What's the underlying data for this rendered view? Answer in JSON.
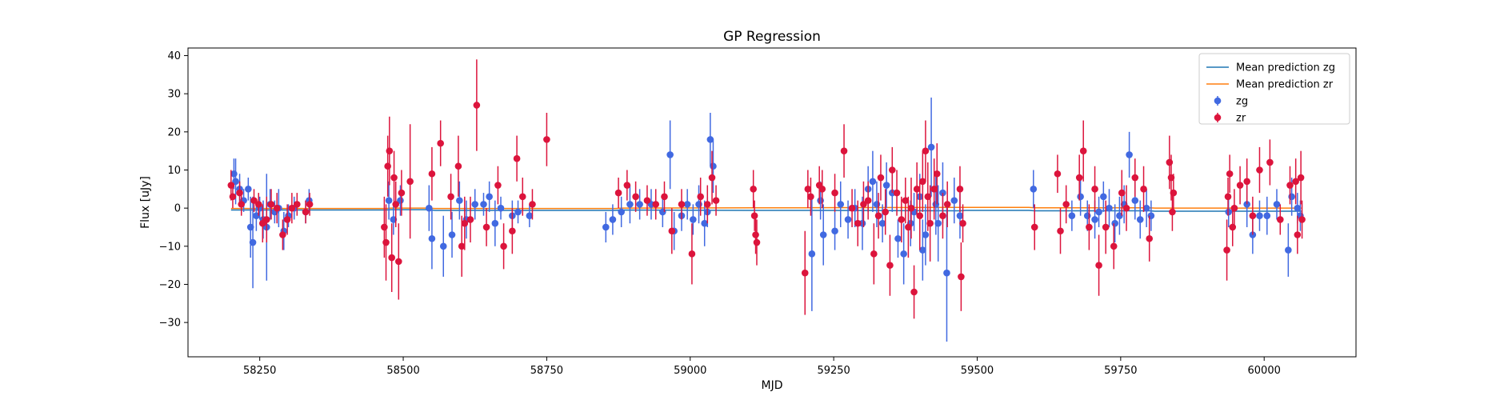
{
  "chart_data": {
    "type": "scatter",
    "title": "GP Regression",
    "xlabel": "MJD",
    "ylabel": "Flux [uJy]",
    "xlim": [
      58125,
      60160
    ],
    "ylim": [
      -39,
      42
    ],
    "xticks": [
      58250,
      58500,
      58750,
      59000,
      59250,
      59500,
      59750,
      60000
    ],
    "yticks": [
      -30,
      -20,
      -10,
      0,
      10,
      20,
      30,
      40
    ],
    "legend_position": "top-right",
    "lines": [
      {
        "name": "Mean prediction zg",
        "color": "#1f77b4",
        "x": [
          58200,
          58470,
          58480,
          58545,
          58555,
          58870,
          58880,
          59110,
          59200,
          59470,
          59480,
          59590,
          59600,
          59800,
          59810,
          60065
        ],
        "y": [
          -0.5,
          -0.5,
          -0.4,
          -0.4,
          -0.6,
          -0.6,
          -0.5,
          -0.6,
          -0.6,
          -0.7,
          -0.6,
          -0.6,
          -0.7,
          -0.7,
          -0.8,
          -0.8
        ]
      },
      {
        "name": "Mean prediction zr",
        "color": "#ff7f0e",
        "x": [
          58200,
          58470,
          58480,
          58545,
          58555,
          58870,
          58880,
          59110,
          59200,
          59470,
          59480,
          59590,
          59600,
          59800,
          59810,
          60065
        ],
        "y": [
          -0.1,
          -0.1,
          0.0,
          0.0,
          -0.1,
          -0.1,
          0.0,
          0.1,
          0.1,
          0.2,
          0.2,
          0.2,
          0.1,
          0.1,
          0.0,
          0.0
        ]
      }
    ],
    "series": [
      {
        "name": "zg",
        "color": "#4169e1",
        "points": [
          [
            58205,
            9,
            4
          ],
          [
            58208,
            7,
            6
          ],
          [
            58215,
            5,
            4
          ],
          [
            58222,
            2,
            3
          ],
          [
            58230,
            5,
            3
          ],
          [
            58234,
            -5,
            8
          ],
          [
            58238,
            -9,
            12
          ],
          [
            58244,
            -2,
            4
          ],
          [
            58250,
            0,
            3
          ],
          [
            58256,
            -3,
            5
          ],
          [
            58262,
            -5,
            14
          ],
          [
            58268,
            1,
            4
          ],
          [
            58276,
            -1,
            3
          ],
          [
            58283,
            0,
            5
          ],
          [
            58292,
            -6,
            5
          ],
          [
            58300,
            -2,
            3
          ],
          [
            58310,
            0,
            3
          ],
          [
            58330,
            -1,
            3
          ],
          [
            58336,
            2,
            3
          ],
          [
            58475,
            2,
            5
          ],
          [
            58483,
            -3,
            4
          ],
          [
            58495,
            2,
            4
          ],
          [
            58545,
            0,
            6
          ],
          [
            58550,
            -8,
            8
          ],
          [
            58570,
            -10,
            8
          ],
          [
            58585,
            -7,
            6
          ],
          [
            58598,
            2,
            5
          ],
          [
            58610,
            -3,
            5
          ],
          [
            58625,
            1,
            4
          ],
          [
            58640,
            1,
            3
          ],
          [
            58650,
            3,
            4
          ],
          [
            58660,
            -4,
            6
          ],
          [
            58670,
            0,
            3
          ],
          [
            58690,
            -2,
            4
          ],
          [
            58700,
            -1,
            3
          ],
          [
            58720,
            -2,
            3
          ],
          [
            58853,
            -5,
            4
          ],
          [
            58865,
            -3,
            4
          ],
          [
            58880,
            -1,
            4
          ],
          [
            58895,
            1,
            5
          ],
          [
            58912,
            1,
            4
          ],
          [
            58932,
            1,
            4
          ],
          [
            58952,
            -1,
            4
          ],
          [
            58965,
            14,
            9
          ],
          [
            58972,
            -6,
            5
          ],
          [
            58985,
            -2,
            4
          ],
          [
            58995,
            1,
            4
          ],
          [
            59005,
            -3,
            4
          ],
          [
            59015,
            1,
            5
          ],
          [
            59025,
            -4,
            6
          ],
          [
            59030,
            -1,
            4
          ],
          [
            59035,
            18,
            7
          ],
          [
            59040,
            11,
            7
          ],
          [
            59212,
            -12,
            15
          ],
          [
            59227,
            2,
            5
          ],
          [
            59232,
            -7,
            8
          ],
          [
            59252,
            -6,
            5
          ],
          [
            59262,
            1,
            6
          ],
          [
            59275,
            -3,
            5
          ],
          [
            59287,
            0,
            5
          ],
          [
            59300,
            -4,
            7
          ],
          [
            59310,
            5,
            6
          ],
          [
            59318,
            7,
            8
          ],
          [
            59325,
            1,
            6
          ],
          [
            59335,
            -4,
            5
          ],
          [
            59342,
            6,
            6
          ],
          [
            59352,
            4,
            5
          ],
          [
            59362,
            -8,
            5
          ],
          [
            59372,
            -12,
            8
          ],
          [
            59384,
            -4,
            6
          ],
          [
            59390,
            -1,
            5
          ],
          [
            59400,
            3,
            6
          ],
          [
            59405,
            -11,
            8
          ],
          [
            59410,
            -7,
            8
          ],
          [
            59420,
            16,
            13
          ],
          [
            59428,
            1,
            8
          ],
          [
            59432,
            -4,
            10
          ],
          [
            59440,
            4,
            8
          ],
          [
            59447,
            -17,
            18
          ],
          [
            59460,
            2,
            6
          ],
          [
            59470,
            -2,
            6
          ],
          [
            59598,
            5,
            5
          ],
          [
            59665,
            -2,
            4
          ],
          [
            59680,
            3,
            5
          ],
          [
            59692,
            -2,
            4
          ],
          [
            59705,
            -3,
            5
          ],
          [
            59712,
            -1,
            4
          ],
          [
            59720,
            3,
            4
          ],
          [
            59730,
            0,
            5
          ],
          [
            59740,
            -4,
            5
          ],
          [
            59748,
            -2,
            5
          ],
          [
            59756,
            1,
            5
          ],
          [
            59765,
            14,
            6
          ],
          [
            59775,
            2,
            5
          ],
          [
            59784,
            -3,
            5
          ],
          [
            59795,
            0,
            5
          ],
          [
            59803,
            -2,
            4
          ],
          [
            59938,
            -1,
            4
          ],
          [
            59970,
            1,
            6
          ],
          [
            59980,
            -7,
            5
          ],
          [
            59992,
            -2,
            4
          ],
          [
            60005,
            -2,
            5
          ],
          [
            60022,
            1,
            4
          ],
          [
            60042,
            -11,
            7
          ],
          [
            60048,
            3,
            5
          ],
          [
            60058,
            0,
            4
          ],
          [
            60063,
            -2,
            4
          ]
        ]
      },
      {
        "name": "zr",
        "color": "#dc143c",
        "points": [
          [
            58200,
            6,
            4
          ],
          [
            58203,
            3,
            3
          ],
          [
            58215,
            4,
            3
          ],
          [
            58218,
            1,
            3
          ],
          [
            58240,
            2,
            3
          ],
          [
            58248,
            1,
            3
          ],
          [
            58255,
            -4,
            5
          ],
          [
            58262,
            -3,
            6
          ],
          [
            58270,
            1,
            4
          ],
          [
            58280,
            0,
            4
          ],
          [
            58290,
            -7,
            4
          ],
          [
            58298,
            -3,
            4
          ],
          [
            58306,
            0,
            4
          ],
          [
            58315,
            1,
            3
          ],
          [
            58330,
            -1,
            3
          ],
          [
            58337,
            1,
            3
          ],
          [
            58467,
            -5,
            8
          ],
          [
            58470,
            -9,
            10
          ],
          [
            58473,
            11,
            8
          ],
          [
            58476,
            15,
            9
          ],
          [
            58480,
            -13,
            9
          ],
          [
            58484,
            8,
            7
          ],
          [
            58487,
            1,
            6
          ],
          [
            58492,
            -14,
            10
          ],
          [
            58497,
            4,
            6
          ],
          [
            58512,
            7,
            15
          ],
          [
            58550,
            9,
            7
          ],
          [
            58565,
            17,
            6
          ],
          [
            58583,
            3,
            6
          ],
          [
            58596,
            11,
            8
          ],
          [
            58602,
            -10,
            8
          ],
          [
            58607,
            -4,
            7
          ],
          [
            58617,
            -3,
            6
          ],
          [
            58628,
            27,
            12
          ],
          [
            58645,
            -5,
            5
          ],
          [
            58665,
            6,
            5
          ],
          [
            58675,
            -10,
            6
          ],
          [
            58690,
            -6,
            6
          ],
          [
            58698,
            13,
            6
          ],
          [
            58708,
            3,
            5
          ],
          [
            58725,
            1,
            4
          ],
          [
            58750,
            18,
            7
          ],
          [
            58875,
            4,
            4
          ],
          [
            58890,
            6,
            4
          ],
          [
            58905,
            3,
            4
          ],
          [
            58925,
            2,
            4
          ],
          [
            58940,
            1,
            4
          ],
          [
            58955,
            3,
            4
          ],
          [
            58968,
            -6,
            6
          ],
          [
            58985,
            1,
            4
          ],
          [
            59003,
            -12,
            8
          ],
          [
            59018,
            3,
            5
          ],
          [
            59030,
            1,
            5
          ],
          [
            59038,
            8,
            7
          ],
          [
            59045,
            2,
            4
          ],
          [
            59110,
            5,
            5
          ],
          [
            59112,
            -2,
            4
          ],
          [
            59114,
            -7,
            5
          ],
          [
            59116,
            -9,
            6
          ],
          [
            59200,
            -17,
            11
          ],
          [
            59205,
            5,
            5
          ],
          [
            59210,
            3,
            5
          ],
          [
            59225,
            6,
            5
          ],
          [
            59230,
            5,
            5
          ],
          [
            59252,
            4,
            5
          ],
          [
            59268,
            15,
            7
          ],
          [
            59282,
            0,
            5
          ],
          [
            59292,
            -4,
            6
          ],
          [
            59302,
            1,
            6
          ],
          [
            59310,
            2,
            5
          ],
          [
            59320,
            -12,
            8
          ],
          [
            59328,
            -2,
            6
          ],
          [
            59332,
            8,
            6
          ],
          [
            59340,
            -1,
            6
          ],
          [
            59348,
            -15,
            8
          ],
          [
            59352,
            10,
            6
          ],
          [
            59360,
            4,
            6
          ],
          [
            59368,
            -3,
            6
          ],
          [
            59375,
            2,
            6
          ],
          [
            59380,
            -5,
            8
          ],
          [
            59385,
            0,
            8
          ],
          [
            59390,
            -22,
            7
          ],
          [
            59395,
            5,
            7
          ],
          [
            59400,
            -2,
            9
          ],
          [
            59405,
            7,
            8
          ],
          [
            59410,
            15,
            8
          ],
          [
            59414,
            3,
            9
          ],
          [
            59418,
            -4,
            10
          ],
          [
            59425,
            5,
            8
          ],
          [
            59430,
            9,
            8
          ],
          [
            59440,
            -2,
            6
          ],
          [
            59448,
            1,
            6
          ],
          [
            59470,
            5,
            6
          ],
          [
            59472,
            -18,
            9
          ],
          [
            59475,
            -4,
            5
          ],
          [
            59600,
            -5,
            6
          ],
          [
            59640,
            9,
            5
          ],
          [
            59645,
            -6,
            6
          ],
          [
            59655,
            1,
            5
          ],
          [
            59678,
            8,
            6
          ],
          [
            59685,
            15,
            8
          ],
          [
            59695,
            -5,
            6
          ],
          [
            59705,
            5,
            6
          ],
          [
            59712,
            -15,
            8
          ],
          [
            59724,
            -5,
            7
          ],
          [
            59738,
            -10,
            6
          ],
          [
            59752,
            4,
            6
          ],
          [
            59760,
            0,
            6
          ],
          [
            59775,
            8,
            5
          ],
          [
            59790,
            5,
            6
          ],
          [
            59800,
            -8,
            6
          ],
          [
            59835,
            12,
            7
          ],
          [
            59838,
            8,
            6
          ],
          [
            59840,
            -1,
            5
          ],
          [
            59842,
            4,
            5
          ],
          [
            59935,
            -11,
            8
          ],
          [
            59937,
            3,
            5
          ],
          [
            59940,
            9,
            5
          ],
          [
            59945,
            -5,
            5
          ],
          [
            59948,
            0,
            5
          ],
          [
            59958,
            6,
            5
          ],
          [
            59970,
            7,
            6
          ],
          [
            59980,
            -2,
            5
          ],
          [
            59992,
            10,
            6
          ],
          [
            60010,
            12,
            6
          ],
          [
            60028,
            -3,
            4
          ],
          [
            60045,
            6,
            5
          ],
          [
            60055,
            7,
            6
          ],
          [
            60058,
            -7,
            5
          ],
          [
            60064,
            8,
            7
          ],
          [
            60066,
            -3,
            5
          ]
        ]
      }
    ]
  }
}
